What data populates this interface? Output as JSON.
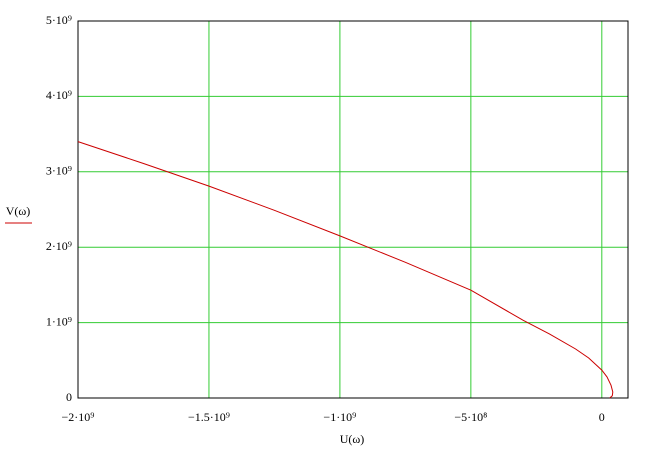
{
  "chart_data": {
    "type": "line",
    "xlabel": "U(ω)",
    "ylabel": "V(ω)",
    "x": [
      -2000000000,
      -1750000000,
      -1500000000,
      -1250000000,
      -1000000000,
      -750000000,
      -500000000,
      -300000000,
      -200000000,
      -100000000,
      -50000000,
      0,
      20000000,
      35000000,
      42000000,
      40000000,
      30000000
    ],
    "values": [
      3400000000,
      3110000000,
      2810000000,
      2490000000,
      2150000000,
      1800000000,
      1430000000,
      1030000000,
      850000000,
      650000000,
      530000000,
      370000000,
      280000000,
      170000000,
      80000000,
      30000000,
      0
    ],
    "color": "#cc0000",
    "grid": true,
    "grid_color": "#33cc33",
    "xlim": [
      -2000000000,
      100000000
    ],
    "xticks": [
      {
        "value": -2000000000,
        "label": "−2·10⁹"
      },
      {
        "value": -1500000000,
        "label": "−1.5·10⁹"
      },
      {
        "value": -1000000000,
        "label": "−1·10⁹"
      },
      {
        "value": -500000000,
        "label": "−5·10⁸"
      },
      0
    ],
    "ylim": [
      0,
      5000000000
    ],
    "yticks": [
      0,
      {
        "value": 1000000000,
        "label": "1·10⁹"
      },
      {
        "value": 2000000000,
        "label": "2·10⁹"
      },
      {
        "value": 3000000000,
        "label": "3·10⁹"
      },
      {
        "value": 4000000000,
        "label": "4·10⁹"
      },
      {
        "value": 5000000000,
        "label": "5·10⁹"
      }
    ]
  }
}
